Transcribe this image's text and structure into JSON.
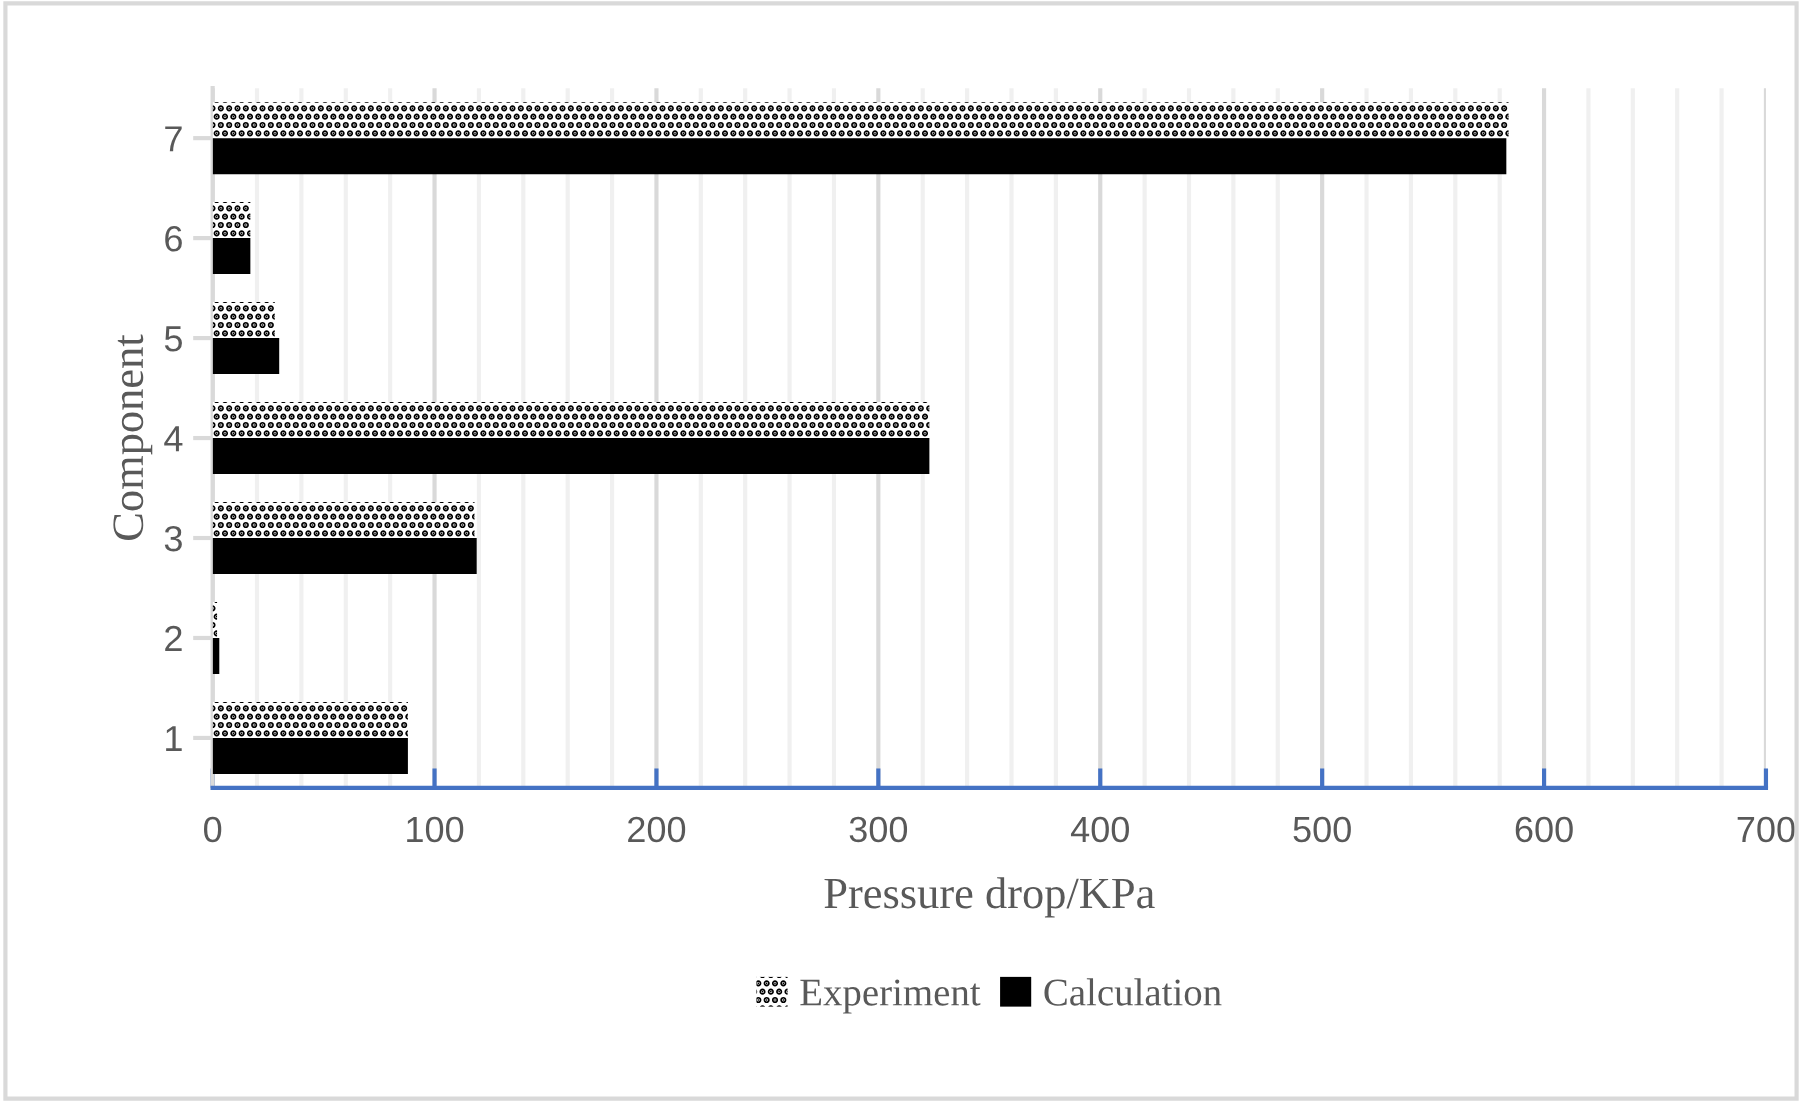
{
  "chart_data": {
    "type": "bar",
    "orientation": "horizontal",
    "xlabel": "Pressure drop/KPa",
    "ylabel": "Component",
    "categories": [
      "7",
      "6",
      "5",
      "4",
      "3",
      "2",
      "1"
    ],
    "series": [
      {
        "name": "Experiment",
        "color": "#000000",
        "values": [
          584,
          17,
          28,
          323,
          118,
          2,
          88
        ]
      },
      {
        "name": "Calculation",
        "color": "#000000",
        "values": [
          583,
          17,
          30,
          323,
          119,
          3,
          88
        ]
      }
    ],
    "xlim": [
      0,
      700
    ],
    "xticks": [
      0,
      100,
      200,
      300,
      400,
      500,
      600,
      700
    ],
    "grid": "x",
    "legend": "bottom"
  }
}
